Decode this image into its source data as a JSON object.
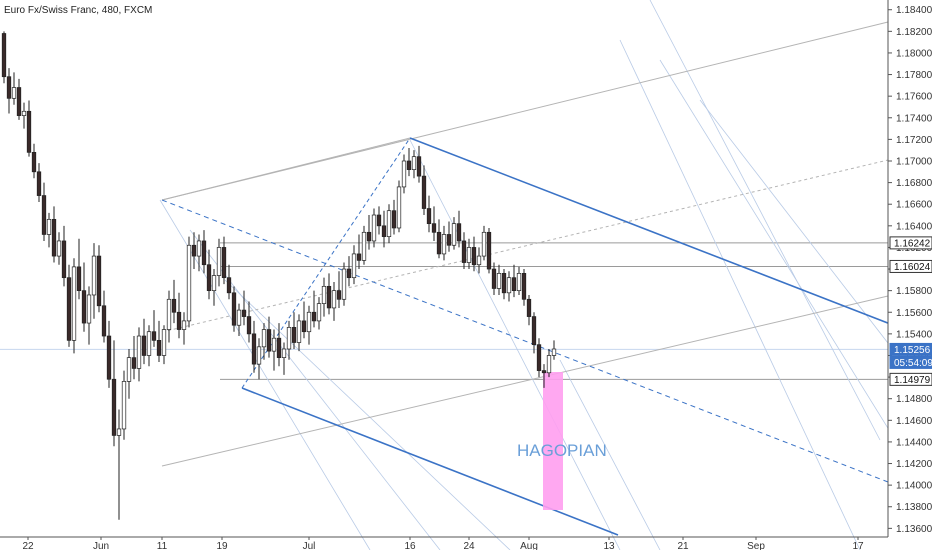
{
  "chart_data": {
    "type": "candlestick",
    "title": "Euro Fx/Swiss Franc, 480, FXCM",
    "y_ticks": [
      "1.18400",
      "1.18200",
      "1.18000",
      "1.17800",
      "1.17600",
      "1.17400",
      "1.17200",
      "1.17000",
      "1.16800",
      "1.16600",
      "1.16400",
      "1.16200",
      "1.16000",
      "1.15800",
      "1.15600",
      "1.15400",
      "1.15200",
      "1.15000",
      "1.14800",
      "1.14600",
      "1.14400",
      "1.14200",
      "1.14000",
      "1.13800",
      "1.13600"
    ],
    "x_ticks": [
      "22",
      "Jun",
      "11",
      "19",
      "Jul",
      "16",
      "24",
      "Aug",
      "13",
      "21",
      "Sep",
      "17"
    ],
    "ylim": [
      1.1352,
      1.1849
    ],
    "price_tags": [
      {
        "value": 1.16242,
        "label": "1.16242",
        "style": "outline"
      },
      {
        "value": 1.16024,
        "label": "1.16024",
        "style": "outline"
      },
      {
        "value": 1.15256,
        "label": "1.15256",
        "style": "filled"
      },
      {
        "value": 1.15256,
        "label": "05:54:09",
        "style": "filled-sub"
      },
      {
        "value": 1.14979,
        "label": "1.14979",
        "style": "outline"
      }
    ],
    "annotation": {
      "text": "HAGOPIAN",
      "color": "#6a9fd8"
    },
    "colors": {
      "bull_candle": "#ffffff",
      "bear_candle": "#3a2a2a",
      "pitchfork_blue": "#3b73c6",
      "gray_lines": "#b4b4b4",
      "light_blue_lines": "#b9cbe6",
      "highlight_box": "#ff9ff0",
      "current_price_tag": "#3b73c6"
    },
    "candles": [
      {
        "o": 1.1818,
        "h": 1.182,
        "l": 1.1772,
        "c": 1.1778
      },
      {
        "o": 1.1778,
        "h": 1.1786,
        "l": 1.1744,
        "c": 1.1758
      },
      {
        "o": 1.1758,
        "h": 1.1782,
        "l": 1.1752,
        "c": 1.1768
      },
      {
        "o": 1.1768,
        "h": 1.1776,
        "l": 1.1738,
        "c": 1.1742
      },
      {
        "o": 1.1742,
        "h": 1.1754,
        "l": 1.173,
        "c": 1.1746
      },
      {
        "o": 1.1746,
        "h": 1.1756,
        "l": 1.1704,
        "c": 1.1708
      },
      {
        "o": 1.1708,
        "h": 1.1716,
        "l": 1.1684,
        "c": 1.169
      },
      {
        "o": 1.169,
        "h": 1.1698,
        "l": 1.1662,
        "c": 1.1668
      },
      {
        "o": 1.1668,
        "h": 1.168,
        "l": 1.1626,
        "c": 1.1632
      },
      {
        "o": 1.1632,
        "h": 1.1652,
        "l": 1.162,
        "c": 1.1646
      },
      {
        "o": 1.1646,
        "h": 1.1658,
        "l": 1.1606,
        "c": 1.1612
      },
      {
        "o": 1.1612,
        "h": 1.1634,
        "l": 1.1604,
        "c": 1.1626
      },
      {
        "o": 1.1626,
        "h": 1.164,
        "l": 1.1584,
        "c": 1.1592
      },
      {
        "o": 1.1592,
        "h": 1.1604,
        "l": 1.1528,
        "c": 1.1534
      },
      {
        "o": 1.1534,
        "h": 1.161,
        "l": 1.1522,
        "c": 1.1602
      },
      {
        "o": 1.1602,
        "h": 1.1628,
        "l": 1.1572,
        "c": 1.158
      },
      {
        "o": 1.158,
        "h": 1.1606,
        "l": 1.1542,
        "c": 1.155
      },
      {
        "o": 1.155,
        "h": 1.1584,
        "l": 1.153,
        "c": 1.1576
      },
      {
        "o": 1.1576,
        "h": 1.1624,
        "l": 1.1554,
        "c": 1.1612
      },
      {
        "o": 1.1612,
        "h": 1.1622,
        "l": 1.156,
        "c": 1.1566
      },
      {
        "o": 1.1566,
        "h": 1.158,
        "l": 1.1532,
        "c": 1.1538
      },
      {
        "o": 1.1538,
        "h": 1.1552,
        "l": 1.149,
        "c": 1.1498
      },
      {
        "o": 1.1498,
        "h": 1.1534,
        "l": 1.1436,
        "c": 1.1446
      },
      {
        "o": 1.1446,
        "h": 1.147,
        "l": 1.1368,
        "c": 1.1452
      },
      {
        "o": 1.1452,
        "h": 1.1506,
        "l": 1.1442,
        "c": 1.1496
      },
      {
        "o": 1.1496,
        "h": 1.1526,
        "l": 1.148,
        "c": 1.1518
      },
      {
        "o": 1.1518,
        "h": 1.1538,
        "l": 1.1498,
        "c": 1.1508
      },
      {
        "o": 1.1508,
        "h": 1.1546,
        "l": 1.1496,
        "c": 1.1538
      },
      {
        "o": 1.1538,
        "h": 1.1554,
        "l": 1.1512,
        "c": 1.152
      },
      {
        "o": 1.152,
        "h": 1.1548,
        "l": 1.151,
        "c": 1.1542
      },
      {
        "o": 1.1542,
        "h": 1.1562,
        "l": 1.1528,
        "c": 1.1534
      },
      {
        "o": 1.1534,
        "h": 1.1552,
        "l": 1.1514,
        "c": 1.152
      },
      {
        "o": 1.152,
        "h": 1.1548,
        "l": 1.1512,
        "c": 1.1544
      },
      {
        "o": 1.1544,
        "h": 1.158,
        "l": 1.1532,
        "c": 1.1572
      },
      {
        "o": 1.1572,
        "h": 1.159,
        "l": 1.155,
        "c": 1.156
      },
      {
        "o": 1.156,
        "h": 1.1578,
        "l": 1.1536,
        "c": 1.1544
      },
      {
        "o": 1.1544,
        "h": 1.156,
        "l": 1.153,
        "c": 1.1552
      },
      {
        "o": 1.1552,
        "h": 1.163,
        "l": 1.1546,
        "c": 1.1622
      },
      {
        "o": 1.1622,
        "h": 1.1634,
        "l": 1.16,
        "c": 1.1612
      },
      {
        "o": 1.1612,
        "h": 1.1632,
        "l": 1.1598,
        "c": 1.1626
      },
      {
        "o": 1.1626,
        "h": 1.1636,
        "l": 1.1596,
        "c": 1.1604
      },
      {
        "o": 1.1604,
        "h": 1.1618,
        "l": 1.1572,
        "c": 1.158
      },
      {
        "o": 1.158,
        "h": 1.16,
        "l": 1.1566,
        "c": 1.1594
      },
      {
        "o": 1.1594,
        "h": 1.1628,
        "l": 1.1584,
        "c": 1.162
      },
      {
        "o": 1.162,
        "h": 1.163,
        "l": 1.1586,
        "c": 1.1592
      },
      {
        "o": 1.1592,
        "h": 1.1604,
        "l": 1.1572,
        "c": 1.1578
      },
      {
        "o": 1.1578,
        "h": 1.1584,
        "l": 1.1542,
        "c": 1.1548
      },
      {
        "o": 1.1548,
        "h": 1.1568,
        "l": 1.1538,
        "c": 1.1562
      },
      {
        "o": 1.1562,
        "h": 1.158,
        "l": 1.1548,
        "c": 1.1556
      },
      {
        "o": 1.1556,
        "h": 1.157,
        "l": 1.1532,
        "c": 1.154
      },
      {
        "o": 1.154,
        "h": 1.1552,
        "l": 1.1504,
        "c": 1.1512
      },
      {
        "o": 1.1512,
        "h": 1.1536,
        "l": 1.1498,
        "c": 1.1528
      },
      {
        "o": 1.1528,
        "h": 1.155,
        "l": 1.1516,
        "c": 1.1544
      },
      {
        "o": 1.1544,
        "h": 1.1556,
        "l": 1.1518,
        "c": 1.1524
      },
      {
        "o": 1.1524,
        "h": 1.1544,
        "l": 1.1506,
        "c": 1.1536
      },
      {
        "o": 1.1536,
        "h": 1.155,
        "l": 1.151,
        "c": 1.1518
      },
      {
        "o": 1.1518,
        "h": 1.1532,
        "l": 1.1502,
        "c": 1.1526
      },
      {
        "o": 1.1526,
        "h": 1.1552,
        "l": 1.1516,
        "c": 1.1546
      },
      {
        "o": 1.1546,
        "h": 1.156,
        "l": 1.1526,
        "c": 1.1532
      },
      {
        "o": 1.1532,
        "h": 1.1558,
        "l": 1.1524,
        "c": 1.1552
      },
      {
        "o": 1.1552,
        "h": 1.157,
        "l": 1.1536,
        "c": 1.1542
      },
      {
        "o": 1.1542,
        "h": 1.1566,
        "l": 1.153,
        "c": 1.156
      },
      {
        "o": 1.156,
        "h": 1.158,
        "l": 1.1546,
        "c": 1.1552
      },
      {
        "o": 1.1552,
        "h": 1.1574,
        "l": 1.1544,
        "c": 1.1568
      },
      {
        "o": 1.1568,
        "h": 1.1592,
        "l": 1.1556,
        "c": 1.1584
      },
      {
        "o": 1.1584,
        "h": 1.1596,
        "l": 1.1558,
        "c": 1.1564
      },
      {
        "o": 1.1564,
        "h": 1.1588,
        "l": 1.1552,
        "c": 1.158
      },
      {
        "o": 1.158,
        "h": 1.1598,
        "l": 1.1564,
        "c": 1.1572
      },
      {
        "o": 1.1572,
        "h": 1.1606,
        "l": 1.1566,
        "c": 1.16
      },
      {
        "o": 1.16,
        "h": 1.1612,
        "l": 1.1584,
        "c": 1.1592
      },
      {
        "o": 1.1592,
        "h": 1.1622,
        "l": 1.1586,
        "c": 1.1614
      },
      {
        "o": 1.1614,
        "h": 1.1632,
        "l": 1.16,
        "c": 1.1608
      },
      {
        "o": 1.1608,
        "h": 1.164,
        "l": 1.1604,
        "c": 1.1634
      },
      {
        "o": 1.1634,
        "h": 1.165,
        "l": 1.1618,
        "c": 1.1626
      },
      {
        "o": 1.1626,
        "h": 1.1656,
        "l": 1.162,
        "c": 1.165
      },
      {
        "o": 1.165,
        "h": 1.1658,
        "l": 1.1632,
        "c": 1.164
      },
      {
        "o": 1.164,
        "h": 1.1654,
        "l": 1.162,
        "c": 1.163
      },
      {
        "o": 1.163,
        "h": 1.166,
        "l": 1.1624,
        "c": 1.1654
      },
      {
        "o": 1.1654,
        "h": 1.1664,
        "l": 1.1632,
        "c": 1.1638
      },
      {
        "o": 1.1638,
        "h": 1.1682,
        "l": 1.1634,
        "c": 1.1676
      },
      {
        "o": 1.1676,
        "h": 1.1706,
        "l": 1.167,
        "c": 1.17
      },
      {
        "o": 1.17,
        "h": 1.1712,
        "l": 1.1686,
        "c": 1.1692
      },
      {
        "o": 1.1692,
        "h": 1.171,
        "l": 1.1684,
        "c": 1.1704
      },
      {
        "o": 1.1704,
        "h": 1.1714,
        "l": 1.168,
        "c": 1.1686
      },
      {
        "o": 1.1686,
        "h": 1.1696,
        "l": 1.165,
        "c": 1.1656
      },
      {
        "o": 1.1656,
        "h": 1.1668,
        "l": 1.1634,
        "c": 1.1642
      },
      {
        "o": 1.1642,
        "h": 1.1658,
        "l": 1.1626,
        "c": 1.1634
      },
      {
        "o": 1.1634,
        "h": 1.1646,
        "l": 1.161,
        "c": 1.1614
      },
      {
        "o": 1.1614,
        "h": 1.164,
        "l": 1.1608,
        "c": 1.1632
      },
      {
        "o": 1.1632,
        "h": 1.1644,
        "l": 1.1616,
        "c": 1.1622
      },
      {
        "o": 1.1622,
        "h": 1.1648,
        "l": 1.1618,
        "c": 1.1642
      },
      {
        "o": 1.1642,
        "h": 1.1654,
        "l": 1.162,
        "c": 1.1626
      },
      {
        "o": 1.1626,
        "h": 1.1634,
        "l": 1.16,
        "c": 1.1606
      },
      {
        "o": 1.1606,
        "h": 1.1628,
        "l": 1.16,
        "c": 1.162
      },
      {
        "o": 1.162,
        "h": 1.163,
        "l": 1.1598,
        "c": 1.1604
      },
      {
        "o": 1.1604,
        "h": 1.162,
        "l": 1.1596,
        "c": 1.1612
      },
      {
        "o": 1.1612,
        "h": 1.164,
        "l": 1.1608,
        "c": 1.1634
      },
      {
        "o": 1.1634,
        "h": 1.1638,
        "l": 1.1596,
        "c": 1.16
      },
      {
        "o": 1.16,
        "h": 1.1606,
        "l": 1.1576,
        "c": 1.1582
      },
      {
        "o": 1.1582,
        "h": 1.1604,
        "l": 1.1576,
        "c": 1.1596
      },
      {
        "o": 1.1596,
        "h": 1.16,
        "l": 1.1572,
        "c": 1.1578
      },
      {
        "o": 1.1578,
        "h": 1.1598,
        "l": 1.157,
        "c": 1.1592
      },
      {
        "o": 1.1592,
        "h": 1.1604,
        "l": 1.1574,
        "c": 1.158
      },
      {
        "o": 1.158,
        "h": 1.1602,
        "l": 1.1576,
        "c": 1.1596
      },
      {
        "o": 1.1596,
        "h": 1.16,
        "l": 1.1566,
        "c": 1.1572
      },
      {
        "o": 1.1572,
        "h": 1.1576,
        "l": 1.1548,
        "c": 1.1556
      },
      {
        "o": 1.1556,
        "h": 1.156,
        "l": 1.1522,
        "c": 1.153
      },
      {
        "o": 1.153,
        "h": 1.1536,
        "l": 1.15,
        "c": 1.1506
      },
      {
        "o": 1.1506,
        "h": 1.1512,
        "l": 1.149,
        "c": 1.1504
      },
      {
        "o": 1.1504,
        "h": 1.1526,
        "l": 1.15,
        "c": 1.152
      },
      {
        "o": 1.152,
        "h": 1.1534,
        "l": 1.1516,
        "c": 1.1526
      }
    ]
  }
}
